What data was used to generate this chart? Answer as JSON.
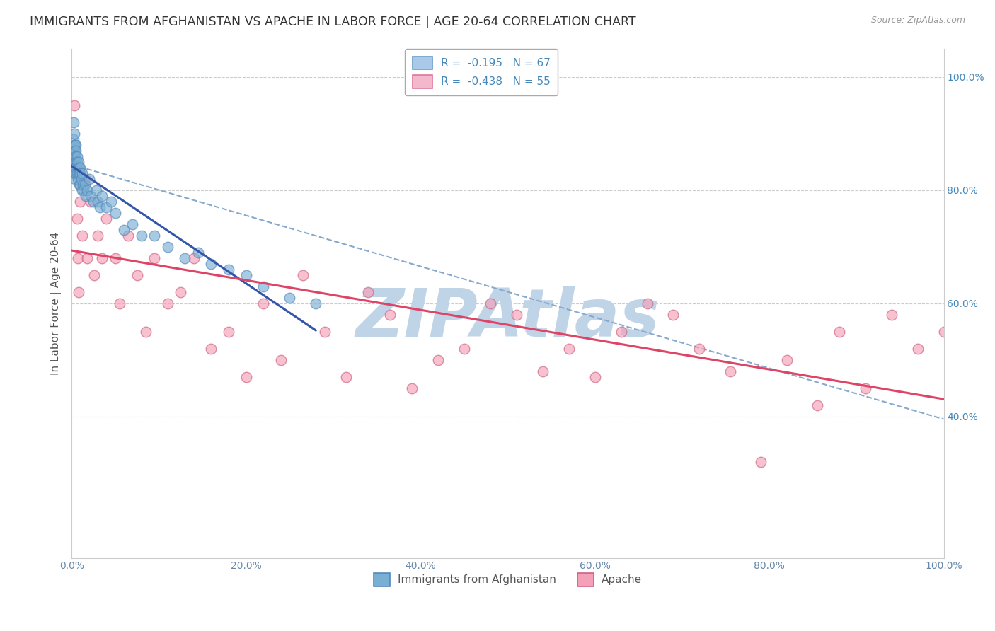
{
  "title": "IMMIGRANTS FROM AFGHANISTAN VS APACHE IN LABOR FORCE | AGE 20-64 CORRELATION CHART",
  "source": "Source: ZipAtlas.com",
  "ylabel": "In Labor Force | Age 20-64",
  "watermark": "ZIPAtlas",
  "watermark_color": "#c0d4e8",
  "afghanistan_color": "#7aafd4",
  "afghanistan_edge": "#5588bb",
  "apache_color": "#f4a0b8",
  "apache_edge": "#d06080",
  "trend_afg_color": "#3355aa",
  "trend_apache_color": "#dd4466",
  "trend_dashed_color": "#88aacc",
  "background_color": "#ffffff",
  "grid_color": "#cccccc",
  "title_color": "#333333",
  "axis_label_color": "#555555",
  "tick_color": "#6688aa",
  "right_tick_color": "#4488bb",
  "legend_afg_face": "#aac8e8",
  "legend_afg_edge": "#6699cc",
  "legend_apache_face": "#f4b8cc",
  "legend_apache_edge": "#dd7799",
  "xlim": [
    0.0,
    1.0
  ],
  "ylim": [
    0.15,
    1.05
  ],
  "afghanistan_x": [
    0.002,
    0.002,
    0.002,
    0.002,
    0.002,
    0.003,
    0.003,
    0.003,
    0.003,
    0.003,
    0.004,
    0.004,
    0.004,
    0.004,
    0.004,
    0.004,
    0.004,
    0.005,
    0.005,
    0.005,
    0.005,
    0.005,
    0.005,
    0.006,
    0.006,
    0.006,
    0.007,
    0.007,
    0.008,
    0.008,
    0.009,
    0.009,
    0.009,
    0.01,
    0.01,
    0.01,
    0.011,
    0.012,
    0.012,
    0.013,
    0.014,
    0.015,
    0.016,
    0.018,
    0.02,
    0.022,
    0.025,
    0.028,
    0.03,
    0.032,
    0.035,
    0.04,
    0.045,
    0.05,
    0.06,
    0.07,
    0.08,
    0.095,
    0.11,
    0.13,
    0.145,
    0.16,
    0.18,
    0.2,
    0.22,
    0.25,
    0.28
  ],
  "afghanistan_y": [
    0.92,
    0.89,
    0.87,
    0.86,
    0.85,
    0.9,
    0.88,
    0.86,
    0.85,
    0.83,
    0.88,
    0.87,
    0.86,
    0.85,
    0.84,
    0.83,
    0.82,
    0.88,
    0.87,
    0.86,
    0.85,
    0.84,
    0.83,
    0.86,
    0.85,
    0.83,
    0.84,
    0.82,
    0.85,
    0.83,
    0.84,
    0.83,
    0.81,
    0.84,
    0.83,
    0.81,
    0.82,
    0.83,
    0.8,
    0.81,
    0.8,
    0.81,
    0.79,
    0.8,
    0.82,
    0.79,
    0.78,
    0.8,
    0.78,
    0.77,
    0.79,
    0.77,
    0.78,
    0.76,
    0.73,
    0.74,
    0.72,
    0.72,
    0.7,
    0.68,
    0.69,
    0.67,
    0.66,
    0.65,
    0.63,
    0.61,
    0.6
  ],
  "apache_x": [
    0.003,
    0.004,
    0.005,
    0.006,
    0.007,
    0.008,
    0.01,
    0.012,
    0.015,
    0.018,
    0.022,
    0.026,
    0.03,
    0.035,
    0.04,
    0.05,
    0.055,
    0.065,
    0.075,
    0.085,
    0.095,
    0.11,
    0.125,
    0.14,
    0.16,
    0.18,
    0.2,
    0.22,
    0.24,
    0.265,
    0.29,
    0.315,
    0.34,
    0.365,
    0.39,
    0.42,
    0.45,
    0.48,
    0.51,
    0.54,
    0.57,
    0.6,
    0.63,
    0.66,
    0.69,
    0.72,
    0.755,
    0.79,
    0.82,
    0.855,
    0.88,
    0.91,
    0.94,
    0.97,
    1.0
  ],
  "apache_y": [
    0.95,
    0.88,
    0.85,
    0.75,
    0.68,
    0.62,
    0.78,
    0.72,
    0.82,
    0.68,
    0.78,
    0.65,
    0.72,
    0.68,
    0.75,
    0.68,
    0.6,
    0.72,
    0.65,
    0.55,
    0.68,
    0.6,
    0.62,
    0.68,
    0.52,
    0.55,
    0.47,
    0.6,
    0.5,
    0.65,
    0.55,
    0.47,
    0.62,
    0.58,
    0.45,
    0.5,
    0.52,
    0.6,
    0.58,
    0.48,
    0.52,
    0.47,
    0.55,
    0.6,
    0.58,
    0.52,
    0.48,
    0.32,
    0.5,
    0.42,
    0.55,
    0.45,
    0.58,
    0.52,
    0.55
  ]
}
